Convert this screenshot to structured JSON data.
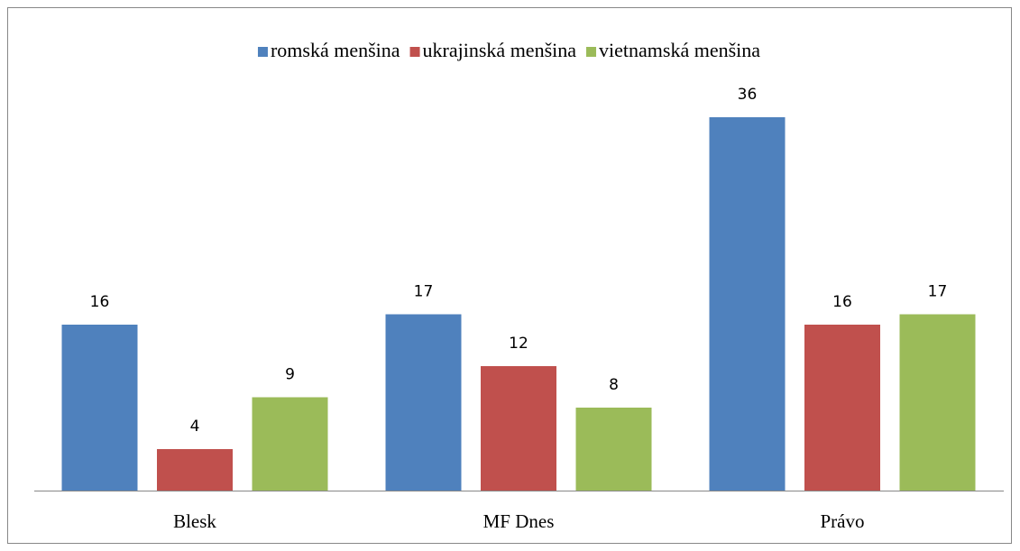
{
  "chart_data": {
    "type": "bar",
    "categories": [
      "Blesk",
      "MF Dnes",
      "Právo"
    ],
    "series": [
      {
        "name": "romská menšina",
        "color": "#4f81bd",
        "values": [
          16,
          17,
          36
        ]
      },
      {
        "name": "ukrajinská menšina",
        "color": "#c0504d",
        "values": [
          4,
          12,
          16
        ]
      },
      {
        "name": "vietnamská menšina",
        "color": "#9bbb59",
        "values": [
          9,
          8,
          17
        ]
      }
    ],
    "legend": "top"
  }
}
